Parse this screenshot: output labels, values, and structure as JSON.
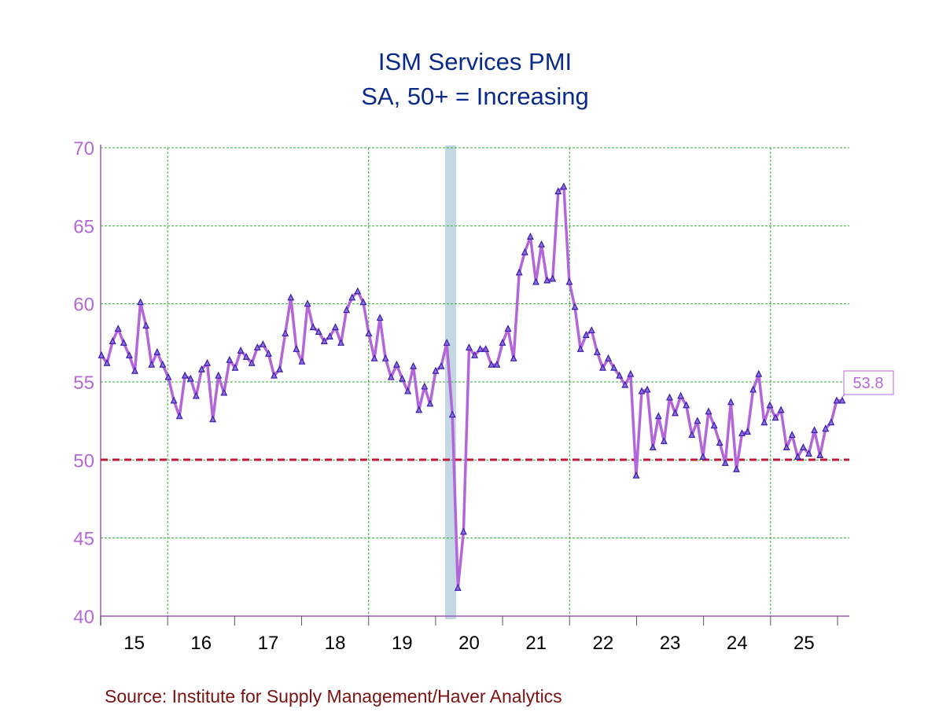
{
  "chart_data": {
    "type": "line",
    "title": "ISM Services PMI",
    "subtitle": "SA, 50+ = Increasing",
    "source": "Source:  Institute for Supply Management/Haver Analytics",
    "xlabel": "",
    "ylabel": "",
    "ylim": [
      40,
      70
    ],
    "yticks": [
      "40",
      "45",
      "50",
      "55",
      "60",
      "65",
      "70"
    ],
    "xtick_labels": [
      "15",
      "16",
      "17",
      "18",
      "19",
      "20",
      "21",
      "22",
      "23",
      "24",
      "25"
    ],
    "grid": true,
    "reference_line": 50,
    "recession_shading": {
      "start": "2020-02",
      "end": "2020-04"
    },
    "last_value_label": "53.8",
    "start": "2015-01",
    "frequency": "monthly",
    "series": [
      {
        "name": "ISM Services PMI",
        "color": "#b366d9",
        "marker_color": "#3a1ea8",
        "values": [
          56.7,
          56.2,
          57.6,
          58.4,
          57.5,
          56.7,
          55.7,
          60.1,
          58.6,
          56.1,
          56.9,
          56.1,
          55.3,
          53.8,
          52.8,
          55.4,
          55.2,
          54.1,
          55.8,
          56.2,
          52.6,
          55.4,
          54.3,
          56.4,
          55.9,
          57.0,
          56.6,
          56.2,
          57.2,
          57.4,
          56.8,
          55.4,
          55.8,
          58.1,
          60.4,
          57.1,
          56.3,
          60.0,
          58.5,
          58.2,
          57.6,
          57.9,
          58.5,
          57.5,
          59.6,
          60.4,
          60.8,
          60.1,
          58.1,
          56.5,
          59.1,
          56.5,
          55.3,
          56.1,
          55.2,
          54.4,
          56.0,
          53.2,
          54.7,
          53.6,
          55.7,
          56.0,
          57.5,
          52.9,
          41.8,
          45.4,
          57.2,
          56.7,
          57.1,
          57.1,
          56.1,
          56.1,
          57.5,
          58.4,
          56.5,
          62.0,
          63.3,
          64.3,
          61.4,
          63.8,
          61.5,
          61.6,
          67.2,
          67.5,
          61.4,
          59.8,
          57.1,
          58.0,
          58.3,
          56.9,
          55.9,
          56.5,
          55.9,
          55.4,
          54.8,
          55.5,
          49.0,
          54.4,
          54.5,
          50.8,
          52.8,
          51.2,
          54.0,
          53.0,
          54.1,
          53.5,
          51.6,
          52.5,
          50.2,
          53.1,
          52.2,
          51.1,
          49.8,
          53.7,
          49.4,
          51.7,
          51.8,
          54.5,
          55.5,
          52.4,
          53.5,
          52.7,
          53.2,
          50.8,
          51.6,
          50.2,
          50.8,
          50.4,
          51.9,
          50.3,
          52.0,
          52.4,
          53.8,
          53.8
        ]
      }
    ]
  }
}
